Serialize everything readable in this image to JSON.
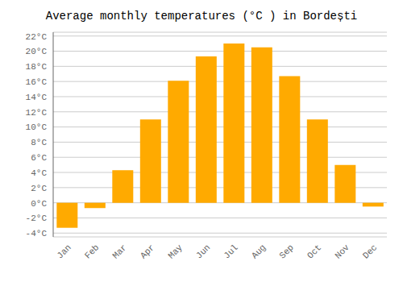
{
  "chart_data": {
    "type": "bar",
    "title": "Average monthly temperatures (°C ) in Bordești",
    "categories": [
      "Jan",
      "Feb",
      "Mar",
      "Apr",
      "May",
      "Jun",
      "Jul",
      "Aug",
      "Sep",
      "Oct",
      "Nov",
      "Dec"
    ],
    "values": [
      -3.3,
      -0.7,
      4.3,
      11.0,
      16.1,
      19.3,
      21.0,
      20.5,
      16.7,
      11.0,
      5.0,
      -0.5
    ],
    "color": "#FFAA00",
    "ylim": [
      -4.5,
      22.5
    ],
    "yticks": [
      {
        "value": -4,
        "label": "-4°C"
      },
      {
        "value": -2,
        "label": "-2°C"
      },
      {
        "value": 0,
        "label": "0°C"
      },
      {
        "value": 2,
        "label": "2°C"
      },
      {
        "value": 4,
        "label": "4°C"
      },
      {
        "value": 6,
        "label": "6°C"
      },
      {
        "value": 8,
        "label": "8°C"
      },
      {
        "value": 10,
        "label": "10°C"
      },
      {
        "value": 12,
        "label": "12°C"
      },
      {
        "value": 14,
        "label": "14°C"
      },
      {
        "value": 16,
        "label": "16°C"
      },
      {
        "value": 18,
        "label": "18°C"
      },
      {
        "value": 20,
        "label": "20°C"
      },
      {
        "value": 22,
        "label": "22°C"
      }
    ],
    "grid": true
  }
}
